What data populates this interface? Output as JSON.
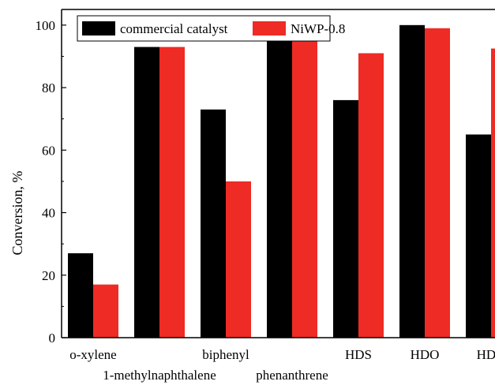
{
  "chart_data": {
    "type": "bar",
    "title": "",
    "xlabel": "",
    "ylabel": "Conversion, %",
    "ylim": [
      0,
      105
    ],
    "yticks": [
      0,
      20,
      40,
      60,
      80,
      100
    ],
    "grid": false,
    "legend_position": "top",
    "categories": [
      "o-xylene",
      "1-methylnaphthalene",
      "biphenyl",
      "phenanthrene",
      "HDS",
      "HDO",
      "HDN"
    ],
    "series": [
      {
        "name": "commercial catalyst",
        "color": "#000000",
        "values": [
          27,
          93,
          73,
          96,
          76,
          100,
          65
        ]
      },
      {
        "name": "NiWP-0.8",
        "color": "#ee2b24",
        "values": [
          17,
          93,
          50,
          95.5,
          91,
          99,
          92.5
        ]
      }
    ]
  }
}
